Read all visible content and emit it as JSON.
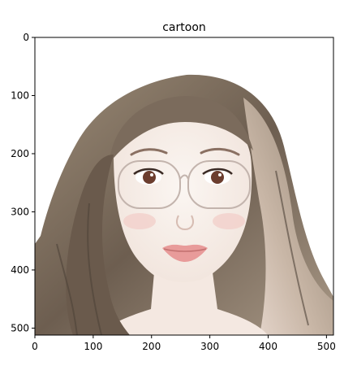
{
  "chart_data": {
    "type": "image",
    "title": "cartoon",
    "xlabel": "",
    "ylabel": "",
    "xlim": [
      0,
      512
    ],
    "ylim": [
      512,
      0
    ],
    "x_ticks": [
      0,
      100,
      200,
      300,
      400,
      500
    ],
    "y_ticks": [
      0,
      100,
      200,
      300,
      400,
      500
    ],
    "grid": false,
    "image_subject": "cartoon-portrait",
    "colors": {
      "hair": "#8a7a68",
      "hair_dark": "#5c4e42",
      "skin": "#f7efe9",
      "blush": "#f0c8c4",
      "lips": "#e89b9a",
      "eye": "#6b3d2e",
      "glasses": "#b8a9a2"
    }
  }
}
